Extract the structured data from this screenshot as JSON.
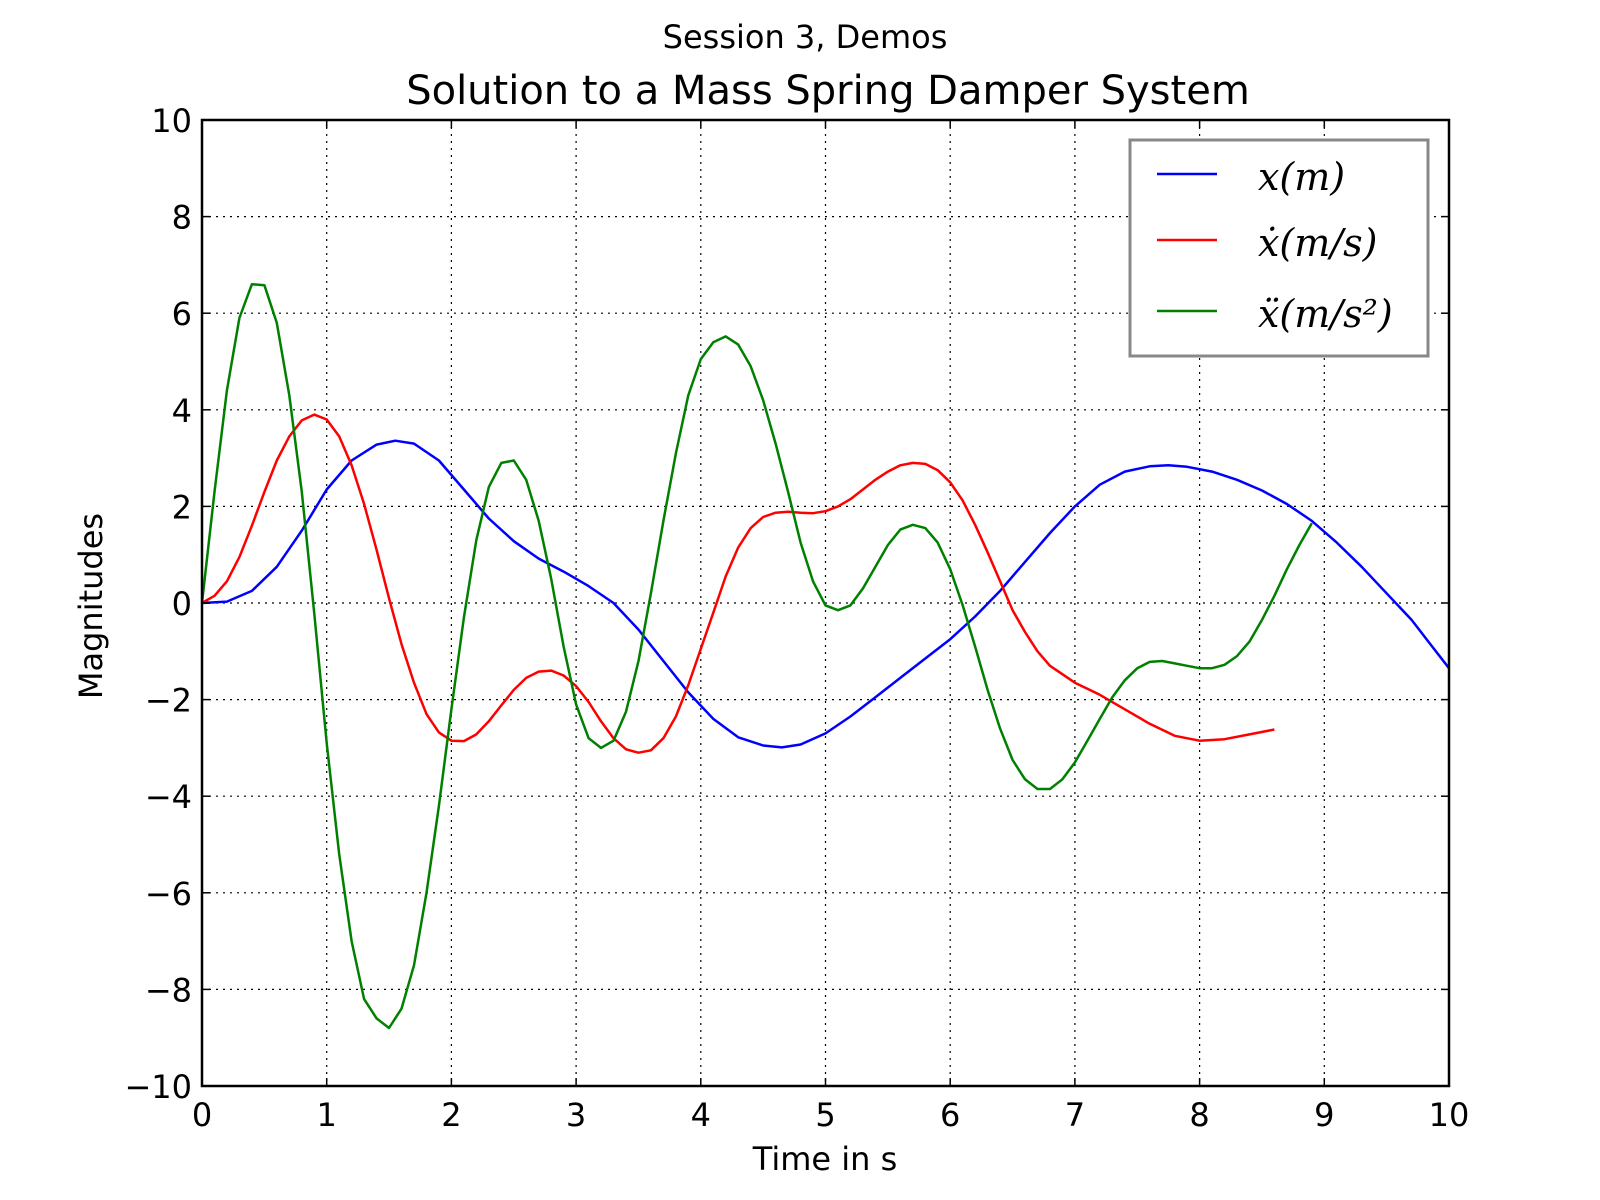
{
  "chart_data": {
    "type": "line",
    "suptitle": "Session 3, Demos",
    "title": "Solution to a Mass Spring Damper System",
    "xlabel": "Time in s",
    "ylabel": "Magnitudes",
    "xlim": [
      0,
      10
    ],
    "ylim": [
      -10,
      10
    ],
    "xticks": [
      "0",
      "1",
      "2",
      "3",
      "4",
      "5",
      "6",
      "7",
      "8",
      "9",
      "10"
    ],
    "yticks": [
      "10",
      "8",
      "6",
      "4",
      "2",
      "0",
      "−2",
      "−4",
      "−6",
      "−8",
      "−10"
    ],
    "xtick_values": [
      0,
      1,
      2,
      3,
      4,
      5,
      6,
      7,
      8,
      9,
      10
    ],
    "ytick_values": [
      10,
      8,
      6,
      4,
      2,
      0,
      -2,
      -4,
      -6,
      -8,
      -10
    ],
    "grid": true,
    "legend_position": "top-right",
    "series": [
      {
        "name": "x(m)",
        "color": "#0000ff",
        "points": [
          [
            0,
            0
          ],
          [
            0.2,
            0.03
          ],
          [
            0.4,
            0.25
          ],
          [
            0.6,
            0.75
          ],
          [
            0.8,
            1.5
          ],
          [
            1.0,
            2.35
          ],
          [
            1.2,
            2.95
          ],
          [
            1.4,
            3.28
          ],
          [
            1.55,
            3.36
          ],
          [
            1.7,
            3.3
          ],
          [
            1.9,
            2.95
          ],
          [
            2.1,
            2.35
          ],
          [
            2.3,
            1.75
          ],
          [
            2.5,
            1.28
          ],
          [
            2.7,
            0.92
          ],
          [
            2.9,
            0.65
          ],
          [
            3.1,
            0.35
          ],
          [
            3.3,
            0.0
          ],
          [
            3.5,
            -0.55
          ],
          [
            3.7,
            -1.2
          ],
          [
            3.9,
            -1.85
          ],
          [
            4.1,
            -2.4
          ],
          [
            4.3,
            -2.78
          ],
          [
            4.5,
            -2.95
          ],
          [
            4.65,
            -2.99
          ],
          [
            4.8,
            -2.93
          ],
          [
            5.0,
            -2.7
          ],
          [
            5.2,
            -2.35
          ],
          [
            5.4,
            -1.95
          ],
          [
            5.6,
            -1.55
          ],
          [
            5.8,
            -1.15
          ],
          [
            6.0,
            -0.75
          ],
          [
            6.2,
            -0.28
          ],
          [
            6.4,
            0.25
          ],
          [
            6.6,
            0.85
          ],
          [
            6.8,
            1.45
          ],
          [
            7.0,
            2.0
          ],
          [
            7.2,
            2.45
          ],
          [
            7.4,
            2.72
          ],
          [
            7.6,
            2.83
          ],
          [
            7.75,
            2.85
          ],
          [
            7.9,
            2.82
          ],
          [
            8.1,
            2.72
          ],
          [
            8.3,
            2.55
          ],
          [
            8.5,
            2.33
          ],
          [
            8.7,
            2.05
          ],
          [
            8.9,
            1.7
          ],
          [
            9.1,
            1.25
          ],
          [
            9.3,
            0.75
          ],
          [
            9.5,
            0.2
          ],
          [
            9.7,
            -0.35
          ],
          [
            9.85,
            -0.85
          ],
          [
            10.0,
            -1.35
          ]
        ]
      },
      {
        "name": "ẋ(m/s)",
        "color": "#ff0000",
        "points": [
          [
            0,
            0
          ],
          [
            0.1,
            0.15
          ],
          [
            0.2,
            0.45
          ],
          [
            0.3,
            0.95
          ],
          [
            0.4,
            1.6
          ],
          [
            0.5,
            2.3
          ],
          [
            0.6,
            2.95
          ],
          [
            0.7,
            3.45
          ],
          [
            0.8,
            3.78
          ],
          [
            0.9,
            3.9
          ],
          [
            1.0,
            3.8
          ],
          [
            1.1,
            3.45
          ],
          [
            1.2,
            2.85
          ],
          [
            1.3,
            2.05
          ],
          [
            1.4,
            1.1
          ],
          [
            1.5,
            0.1
          ],
          [
            1.6,
            -0.85
          ],
          [
            1.7,
            -1.65
          ],
          [
            1.8,
            -2.3
          ],
          [
            1.9,
            -2.68
          ],
          [
            2.0,
            -2.85
          ],
          [
            2.1,
            -2.86
          ],
          [
            2.2,
            -2.72
          ],
          [
            2.3,
            -2.45
          ],
          [
            2.4,
            -2.12
          ],
          [
            2.5,
            -1.8
          ],
          [
            2.6,
            -1.55
          ],
          [
            2.7,
            -1.42
          ],
          [
            2.8,
            -1.4
          ],
          [
            2.9,
            -1.5
          ],
          [
            3.0,
            -1.72
          ],
          [
            3.1,
            -2.05
          ],
          [
            3.2,
            -2.45
          ],
          [
            3.3,
            -2.8
          ],
          [
            3.4,
            -3.03
          ],
          [
            3.5,
            -3.1
          ],
          [
            3.6,
            -3.05
          ],
          [
            3.7,
            -2.8
          ],
          [
            3.8,
            -2.35
          ],
          [
            3.9,
            -1.7
          ],
          [
            4.0,
            -0.95
          ],
          [
            4.1,
            -0.2
          ],
          [
            4.2,
            0.55
          ],
          [
            4.3,
            1.15
          ],
          [
            4.4,
            1.55
          ],
          [
            4.5,
            1.78
          ],
          [
            4.6,
            1.87
          ],
          [
            4.7,
            1.89
          ],
          [
            4.8,
            1.87
          ],
          [
            4.9,
            1.86
          ],
          [
            5.0,
            1.9
          ],
          [
            5.1,
            2.0
          ],
          [
            5.2,
            2.15
          ],
          [
            5.3,
            2.35
          ],
          [
            5.4,
            2.55
          ],
          [
            5.5,
            2.72
          ],
          [
            5.6,
            2.85
          ],
          [
            5.7,
            2.9
          ],
          [
            5.8,
            2.88
          ],
          [
            5.9,
            2.75
          ],
          [
            6.0,
            2.5
          ],
          [
            6.1,
            2.12
          ],
          [
            6.2,
            1.62
          ],
          [
            6.3,
            1.05
          ],
          [
            6.4,
            0.45
          ],
          [
            6.5,
            -0.15
          ],
          [
            6.6,
            -0.6
          ],
          [
            6.7,
            -1.0
          ],
          [
            6.8,
            -1.3
          ],
          [
            7.0,
            -1.65
          ],
          [
            7.2,
            -1.9
          ],
          [
            7.4,
            -2.2
          ],
          [
            7.6,
            -2.5
          ],
          [
            7.8,
            -2.75
          ],
          [
            8.0,
            -2.85
          ],
          [
            8.2,
            -2.82
          ],
          [
            8.4,
            -2.72
          ],
          [
            8.6,
            -2.62
          ]
        ]
      },
      {
        "name": "ẍ(m/s²)",
        "color": "#008000",
        "points": [
          [
            0,
            0
          ],
          [
            0.1,
            2.3
          ],
          [
            0.2,
            4.4
          ],
          [
            0.3,
            5.9
          ],
          [
            0.4,
            6.6
          ],
          [
            0.5,
            6.58
          ],
          [
            0.6,
            5.8
          ],
          [
            0.7,
            4.3
          ],
          [
            0.8,
            2.3
          ],
          [
            0.9,
            -0.2
          ],
          [
            1.0,
            -2.9
          ],
          [
            1.1,
            -5.2
          ],
          [
            1.2,
            -7.0
          ],
          [
            1.3,
            -8.2
          ],
          [
            1.4,
            -8.6
          ],
          [
            1.5,
            -8.8
          ],
          [
            1.6,
            -8.4
          ],
          [
            1.7,
            -7.5
          ],
          [
            1.8,
            -6.0
          ],
          [
            1.9,
            -4.2
          ],
          [
            2.0,
            -2.2
          ],
          [
            2.1,
            -0.3
          ],
          [
            2.2,
            1.3
          ],
          [
            2.3,
            2.4
          ],
          [
            2.4,
            2.9
          ],
          [
            2.5,
            2.95
          ],
          [
            2.6,
            2.55
          ],
          [
            2.7,
            1.7
          ],
          [
            2.8,
            0.5
          ],
          [
            2.9,
            -0.9
          ],
          [
            3.0,
            -2.1
          ],
          [
            3.1,
            -2.8
          ],
          [
            3.2,
            -3.0
          ],
          [
            3.3,
            -2.85
          ],
          [
            3.4,
            -2.25
          ],
          [
            3.5,
            -1.2
          ],
          [
            3.6,
            0.2
          ],
          [
            3.7,
            1.7
          ],
          [
            3.8,
            3.1
          ],
          [
            3.9,
            4.3
          ],
          [
            4.0,
            5.05
          ],
          [
            4.1,
            5.4
          ],
          [
            4.2,
            5.52
          ],
          [
            4.3,
            5.35
          ],
          [
            4.4,
            4.9
          ],
          [
            4.5,
            4.2
          ],
          [
            4.6,
            3.3
          ],
          [
            4.7,
            2.3
          ],
          [
            4.8,
            1.25
          ],
          [
            4.9,
            0.45
          ],
          [
            5.0,
            -0.05
          ],
          [
            5.1,
            -0.15
          ],
          [
            5.2,
            -0.05
          ],
          [
            5.3,
            0.3
          ],
          [
            5.4,
            0.75
          ],
          [
            5.5,
            1.2
          ],
          [
            5.6,
            1.52
          ],
          [
            5.7,
            1.62
          ],
          [
            5.8,
            1.55
          ],
          [
            5.9,
            1.25
          ],
          [
            6.0,
            0.7
          ],
          [
            6.1,
            -0.05
          ],
          [
            6.2,
            -0.9
          ],
          [
            6.3,
            -1.8
          ],
          [
            6.4,
            -2.6
          ],
          [
            6.5,
            -3.25
          ],
          [
            6.6,
            -3.65
          ],
          [
            6.7,
            -3.85
          ],
          [
            6.8,
            -3.85
          ],
          [
            6.9,
            -3.65
          ],
          [
            7.0,
            -3.3
          ],
          [
            7.1,
            -2.85
          ],
          [
            7.2,
            -2.4
          ],
          [
            7.3,
            -1.95
          ],
          [
            7.4,
            -1.6
          ],
          [
            7.5,
            -1.35
          ],
          [
            7.6,
            -1.22
          ],
          [
            7.7,
            -1.2
          ],
          [
            7.8,
            -1.25
          ],
          [
            7.9,
            -1.3
          ],
          [
            8.0,
            -1.35
          ],
          [
            8.1,
            -1.35
          ],
          [
            8.2,
            -1.28
          ],
          [
            8.3,
            -1.1
          ],
          [
            8.4,
            -0.8
          ],
          [
            8.5,
            -0.35
          ],
          [
            8.6,
            0.15
          ],
          [
            8.7,
            0.7
          ],
          [
            8.8,
            1.2
          ],
          [
            8.9,
            1.65
          ]
        ]
      }
    ]
  }
}
